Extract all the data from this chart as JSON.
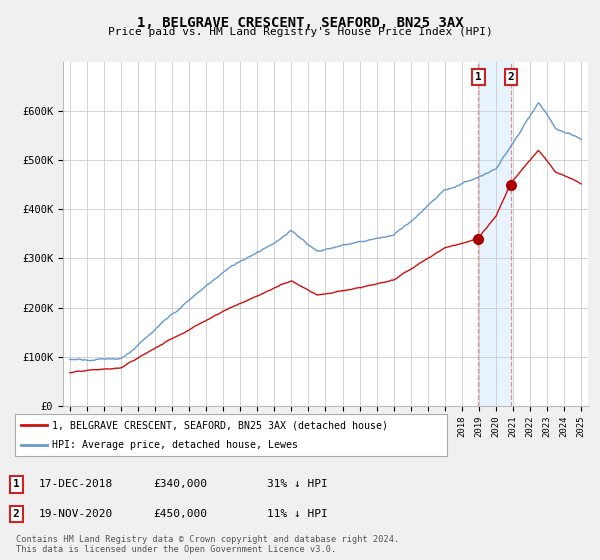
{
  "title": "1, BELGRAVE CRESCENT, SEAFORD, BN25 3AX",
  "subtitle": "Price paid vs. HM Land Registry's House Price Index (HPI)",
  "legend_label_red": "1, BELGRAVE CRESCENT, SEAFORD, BN25 3AX (detached house)",
  "legend_label_blue": "HPI: Average price, detached house, Lewes",
  "annotation1_num": "1",
  "annotation1_date": "17-DEC-2018",
  "annotation1_price": "£340,000",
  "annotation1_hpi": "31% ↓ HPI",
  "annotation2_num": "2",
  "annotation2_date": "19-NOV-2020",
  "annotation2_price": "£450,000",
  "annotation2_hpi": "11% ↓ HPI",
  "footer": "Contains HM Land Registry data © Crown copyright and database right 2024.\nThis data is licensed under the Open Government Licence v3.0.",
  "red_color": "#cc1111",
  "blue_color": "#6699cc",
  "marker_color": "#aa0000",
  "vline1_color": "#cc8888",
  "vline2_color": "#cc8888",
  "background_color": "#f0f0f0",
  "plot_bg_color": "#ffffff",
  "grid_color": "#cccccc",
  "ylim_min": 0,
  "ylim_max": 700000,
  "sale1_year": 2018.97,
  "sale1_price": 340000,
  "sale2_year": 2020.89,
  "sale2_price": 450000,
  "n_points": 500
}
